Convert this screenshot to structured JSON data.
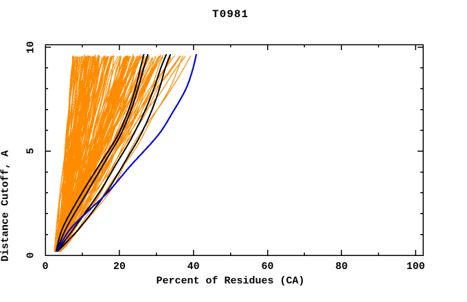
{
  "window": {
    "background": "#ffffff"
  },
  "chart_data": {
    "type": "line",
    "title": "T0981",
    "xlabel": "Percent of Residues (CA)",
    "ylabel": "Distance Cutoff, A",
    "xlim": [
      0,
      102
    ],
    "ylim": [
      0,
      10.12
    ],
    "x_major_ticks": [
      0,
      20,
      40,
      60,
      80,
      100
    ],
    "x_minor_ticks": [
      10,
      30,
      50,
      70,
      90
    ],
    "y_major_ticks": [
      0,
      5,
      10
    ],
    "y_minor_ticks": [
      1,
      2,
      3,
      4,
      6,
      7,
      8,
      9
    ],
    "grid": false,
    "legend": "none",
    "frame": true,
    "mirror_ticks": true,
    "tick_direction": "in",
    "axis_color": "#000000",
    "colors": {
      "ensemble": "#ff8c00",
      "highlight": "#000000",
      "reference": "#0000ee"
    },
    "series": [
      {
        "name": "server-models-ensemble",
        "role": "ensemble",
        "color": "#ff8c00",
        "stroke_width": 1.25,
        "count": 150,
        "seed": 1337,
        "y_start": 0.16,
        "y_end": 9.66,
        "x_start_range": [
          2.4,
          4.2
        ],
        "x_end_clusters": [
          {
            "weight": 0.42,
            "range": [
              7.3,
              15.0
            ]
          },
          {
            "weight": 0.5,
            "range": [
              16.0,
              33.5
            ]
          },
          {
            "weight": 0.08,
            "range": [
              33.5,
              39.5
            ]
          }
        ]
      },
      {
        "name": "highlighted-model-1",
        "role": "highlight",
        "color": "#000000",
        "stroke_width": 2,
        "points_pct_vs_cutoff": [
          [
            2.9,
            0.18
          ],
          [
            4.8,
            1.36
          ],
          [
            10.0,
            3.03
          ],
          [
            14.8,
            4.4
          ],
          [
            19.3,
            5.67
          ],
          [
            22.3,
            6.9
          ],
          [
            24.3,
            8.0
          ],
          [
            25.7,
            9.0
          ],
          [
            26.6,
            9.66
          ]
        ]
      },
      {
        "name": "highlighted-model-2",
        "role": "highlight",
        "color": "#000000",
        "stroke_width": 2,
        "points_pct_vs_cutoff": [
          [
            3.0,
            0.18
          ],
          [
            5.8,
            1.36
          ],
          [
            11.3,
            3.03
          ],
          [
            15.8,
            4.4
          ],
          [
            20.0,
            5.67
          ],
          [
            23.0,
            6.9
          ],
          [
            25.0,
            8.0
          ],
          [
            26.6,
            9.0
          ],
          [
            27.7,
            9.66
          ]
        ]
      },
      {
        "name": "highlighted-model-3",
        "role": "highlight",
        "color": "#000000",
        "stroke_width": 2,
        "points_pct_vs_cutoff": [
          [
            3.1,
            0.18
          ],
          [
            8.0,
            1.36
          ],
          [
            14.6,
            3.03
          ],
          [
            19.2,
            4.4
          ],
          [
            23.4,
            5.67
          ],
          [
            26.8,
            6.9
          ],
          [
            29.3,
            8.0
          ],
          [
            31.2,
            9.0
          ],
          [
            32.7,
            9.66
          ]
        ]
      },
      {
        "name": "highlighted-model-4",
        "role": "highlight",
        "color": "#000000",
        "stroke_width": 2,
        "points_pct_vs_cutoff": [
          [
            3.2,
            0.18
          ],
          [
            9.5,
            1.36
          ],
          [
            16.5,
            3.03
          ],
          [
            21.2,
            4.4
          ],
          [
            25.4,
            5.67
          ],
          [
            28.6,
            6.9
          ],
          [
            30.8,
            8.0
          ],
          [
            32.4,
            9.0
          ],
          [
            33.8,
            9.66
          ]
        ]
      },
      {
        "name": "best-model",
        "role": "reference",
        "color": "#0000ee",
        "stroke_width": 2.2,
        "points_pct_vs_cutoff": [
          [
            3.2,
            0.18
          ],
          [
            5.0,
            0.8
          ],
          [
            7.2,
            1.36
          ],
          [
            12.0,
            2.2
          ],
          [
            16.9,
            3.03
          ],
          [
            23.0,
            4.3
          ],
          [
            30.4,
            5.76
          ],
          [
            34.5,
            6.9
          ],
          [
            37.8,
            7.93
          ],
          [
            39.6,
            8.8
          ],
          [
            40.8,
            9.66
          ]
        ]
      }
    ]
  }
}
